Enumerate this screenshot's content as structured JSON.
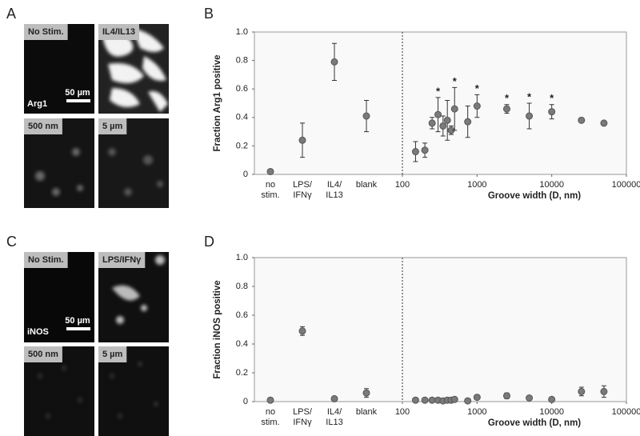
{
  "image_panels": [
    {
      "panel_label": "A",
      "marker": "Arg1",
      "scale_bar": "50 µm",
      "images": [
        "No Stim.",
        "IL4/IL13",
        "500 nm",
        "5 µm"
      ]
    },
    {
      "panel_label": "C",
      "marker": "iNOS",
      "scale_bar": "50 µm",
      "images": [
        "No Stim.",
        "LPS/IFNγ",
        "500 nm",
        "5 µm"
      ]
    }
  ],
  "chart_data": [
    {
      "type": "scatter",
      "panel_label": "B",
      "ylabel": "Fraction Arg1 positive",
      "xlabel": "Groove width (D, nm)",
      "categories": [
        "no stim.",
        "LPS/ IFNγ",
        "IL4/ IL13",
        "blank"
      ],
      "category_values": [
        0.02,
        0.24,
        0.79,
        0.41
      ],
      "category_errors": [
        0.01,
        0.12,
        0.13,
        0.11
      ],
      "x": [
        150,
        200,
        250,
        300,
        350,
        400,
        450,
        500,
        750,
        1000,
        2500,
        5000,
        10000,
        25000,
        50000
      ],
      "values": [
        0.16,
        0.17,
        0.36,
        0.42,
        0.34,
        0.38,
        0.31,
        0.46,
        0.37,
        0.48,
        0.46,
        0.41,
        0.44,
        0.38,
        0.36
      ],
      "errors": [
        0.07,
        0.05,
        0.04,
        0.12,
        0.07,
        0.14,
        0.03,
        0.15,
        0.11,
        0.08,
        0.03,
        0.09,
        0.05,
        0.015,
        0.015
      ],
      "annotations": [
        {
          "text": "*",
          "x": 300
        },
        {
          "text": "*",
          "x": 500
        },
        {
          "text": "*",
          "x": 1000
        },
        {
          "text": "*",
          "x": 2500
        },
        {
          "text": "*",
          "x": 5000
        },
        {
          "text": "*",
          "x": 10000
        }
      ],
      "xscale": "log",
      "xlim": [
        100,
        100000
      ],
      "xticks": [
        100,
        1000,
        10000,
        100000
      ],
      "ylim": [
        0,
        1
      ],
      "yticks": [
        0,
        0.2,
        0.4,
        0.6,
        0.8,
        {
          "value": 1,
          "label": "1.0"
        }
      ],
      "color": "#7a7a7a"
    },
    {
      "type": "scatter",
      "panel_label": "D",
      "ylabel": "Fraction iNOS positive",
      "xlabel": "Groove width (D, nm)",
      "categories": [
        "no stim.",
        "LPS/ IFNγ",
        "IL4/ IL13",
        "blank"
      ],
      "category_values": [
        0.01,
        0.49,
        0.02,
        0.06
      ],
      "category_errors": [
        0.01,
        0.03,
        0.01,
        0.03
      ],
      "x": [
        150,
        200,
        250,
        300,
        350,
        400,
        450,
        500,
        750,
        1000,
        2500,
        5000,
        10000,
        25000,
        50000
      ],
      "values": [
        0.01,
        0.01,
        0.01,
        0.01,
        0.005,
        0.01,
        0.01,
        0.015,
        0.005,
        0.03,
        0.04,
        0.025,
        0.015,
        0.07,
        0.07
      ],
      "errors": [
        0.005,
        0.005,
        0.005,
        0.005,
        0.005,
        0.005,
        0.005,
        0.005,
        0.005,
        0.01,
        0.02,
        0.015,
        0.01,
        0.03,
        0.04
      ],
      "xscale": "log",
      "xlim": [
        100,
        100000
      ],
      "xticks": [
        100,
        1000,
        10000,
        100000
      ],
      "ylim": [
        0,
        1
      ],
      "yticks": [
        0,
        0.2,
        0.4,
        0.6,
        0.8,
        {
          "value": 1,
          "label": "1.0"
        }
      ],
      "color": "#7a7a7a"
    }
  ]
}
